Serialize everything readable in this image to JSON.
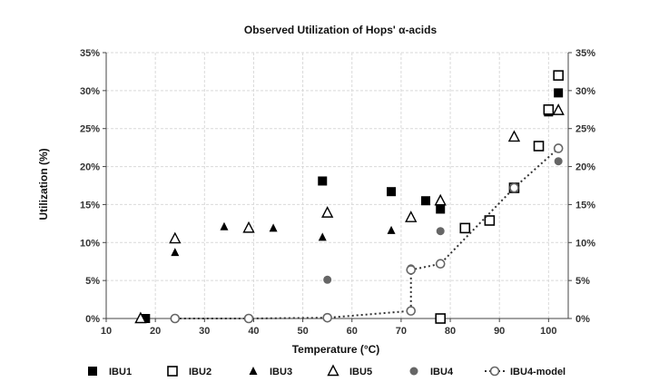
{
  "chart_data": {
    "type": "scatter",
    "title": "Observed Utilization of Hops' α-acids",
    "xlabel": "Temperature (°C)",
    "ylabel": "Utilization (%)",
    "xlim": [
      10,
      104
    ],
    "ylim": [
      0,
      35
    ],
    "x_ticks": [
      10,
      20,
      30,
      40,
      50,
      60,
      70,
      80,
      90,
      100
    ],
    "y_ticks": [
      0,
      5,
      10,
      15,
      20,
      25,
      30,
      35
    ],
    "y_tick_labels": [
      "0%",
      "5%",
      "10%",
      "15%",
      "20%",
      "25%",
      "30%",
      "35%"
    ],
    "grid": true,
    "secondary_y_axis": true,
    "legend_position": "bottom",
    "series": [
      {
        "name": "IBU1",
        "marker": "square-filled",
        "color": "#000000",
        "x": [
          18,
          54,
          68,
          75,
          78,
          100,
          102
        ],
        "y": [
          0,
          18.1,
          16.7,
          15.5,
          14.4,
          27.2,
          29.7
        ]
      },
      {
        "name": "IBU2",
        "marker": "square-open",
        "color": "#000000",
        "x": [
          78,
          83,
          88,
          93,
          98,
          100,
          102
        ],
        "y": [
          0,
          11.9,
          12.9,
          17.2,
          22.7,
          27.5,
          32.0
        ]
      },
      {
        "name": "IBU3",
        "marker": "triangle-filled",
        "color": "#000000",
        "x": [
          24,
          34,
          44,
          54,
          68,
          78
        ],
        "y": [
          8.7,
          12.1,
          11.9,
          10.7,
          11.6,
          14.8
        ]
      },
      {
        "name": "IBU5",
        "marker": "triangle-open",
        "color": "#000000",
        "x": [
          17,
          24,
          39,
          55,
          72,
          78,
          93,
          102
        ],
        "y": [
          0,
          10.5,
          11.9,
          13.9,
          13.3,
          15.5,
          23.9,
          27.4
        ]
      },
      {
        "name": "IBU4",
        "marker": "circle-filled",
        "color": "#666666",
        "x": [
          24,
          39,
          55,
          72,
          78,
          102
        ],
        "y": [
          0,
          0,
          5.1,
          6.6,
          11.5,
          20.7
        ]
      },
      {
        "name": "IBU4-model",
        "marker": "circle-open-dotted-line",
        "color": "#666666",
        "x": [
          24,
          39,
          55,
          72,
          72,
          78,
          93,
          102
        ],
        "y": [
          0,
          0,
          0.1,
          1.0,
          6.4,
          7.2,
          17.2,
          22.4
        ]
      }
    ]
  }
}
